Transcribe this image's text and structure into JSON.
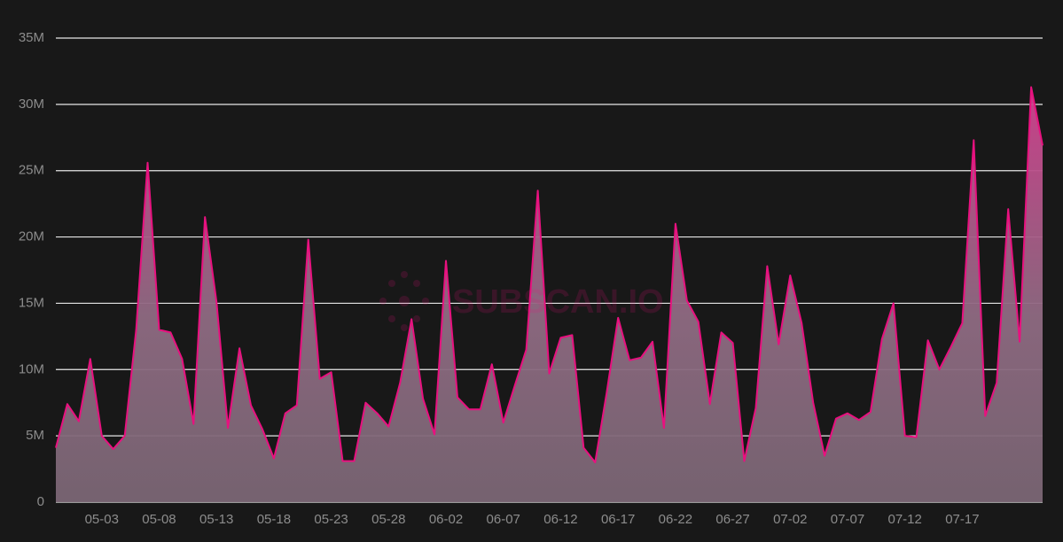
{
  "chart_data": {
    "type": "area",
    "watermark": "SUBSCAN.IO",
    "categories": [
      null,
      null,
      null,
      null,
      "05-03",
      null,
      null,
      null,
      null,
      "05-08",
      null,
      null,
      null,
      null,
      "05-13",
      null,
      null,
      null,
      null,
      "05-18",
      null,
      null,
      null,
      null,
      "05-23",
      null,
      null,
      null,
      null,
      "05-28",
      null,
      null,
      null,
      null,
      "06-02",
      null,
      null,
      null,
      null,
      "06-07",
      null,
      null,
      null,
      null,
      "06-12",
      null,
      null,
      null,
      null,
      "06-17",
      null,
      null,
      null,
      null,
      "06-22",
      null,
      null,
      null,
      null,
      "06-27",
      null,
      null,
      null,
      null,
      "07-02",
      null,
      null,
      null,
      null,
      "07-07",
      null,
      null,
      null,
      null,
      "07-12",
      null,
      null,
      null,
      null,
      "07-17",
      null,
      null,
      null,
      null,
      null,
      null,
      null
    ],
    "values": [
      4.1,
      7.4,
      6.1,
      10.8,
      5.0,
      4.0,
      5.0,
      13.0,
      25.6,
      13.0,
      12.8,
      10.8,
      5.9,
      21.5,
      15.1,
      5.6,
      11.6,
      7.3,
      5.5,
      3.3,
      6.7,
      7.3,
      19.8,
      9.3,
      9.8,
      3.1,
      3.1,
      7.5,
      6.7,
      5.7,
      9.0,
      13.8,
      7.8,
      5.1,
      18.2,
      7.9,
      7.0,
      7.0,
      10.4,
      6.0,
      8.8,
      11.5,
      23.5,
      9.7,
      12.4,
      12.6,
      4.1,
      3.0,
      8.2,
      13.9,
      10.7,
      10.9,
      12.1,
      5.6,
      21.0,
      15.2,
      13.6,
      7.4,
      12.8,
      12.0,
      3.1,
      7.1,
      17.8,
      11.9,
      17.1,
      13.5,
      7.5,
      3.5,
      6.3,
      6.7,
      6.2,
      6.8,
      12.3,
      15.0,
      5.0,
      4.9,
      12.2,
      10.0,
      11.7,
      13.5,
      27.3,
      6.5,
      9.0,
      22.1,
      12.1,
      31.3,
      26.9
    ],
    "color": "#e8117f",
    "ylim": [
      0,
      35
    ],
    "yticks": [
      0,
      {
        "value": 5,
        "label": "5M"
      },
      {
        "value": 10,
        "label": "10M"
      },
      {
        "value": 15,
        "label": "15M"
      },
      {
        "value": 20,
        "label": "20M"
      },
      {
        "value": 25,
        "label": "25M"
      },
      {
        "value": 30,
        "label": "30M"
      },
      {
        "value": 35,
        "label": "35M"
      }
    ],
    "grid": true
  }
}
